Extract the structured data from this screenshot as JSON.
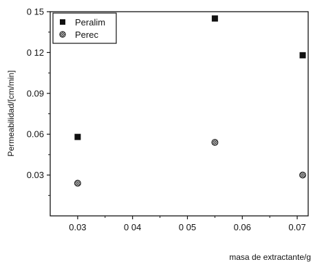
{
  "chart_data": {
    "type": "scatter",
    "title": "",
    "xlabel": "masa de extractante/g",
    "ylabel": "Permeabilidad/[cm/min]",
    "xlim": [
      0.025,
      0.072
    ],
    "ylim": [
      0.0,
      0.15
    ],
    "x_ticks": [
      0.03,
      0.04,
      0.05,
      0.06,
      0.07
    ],
    "x_tick_labels": [
      "0.03",
      "0 04",
      "0 05",
      "0.06",
      "0.07"
    ],
    "y_ticks": [
      0.03,
      0.06,
      0.09,
      0.12,
      0.15
    ],
    "y_tick_labels": [
      "0.03",
      "0.06",
      "0.09",
      "0 12",
      "0 15"
    ],
    "grid": false,
    "legend_position": "top-left",
    "series": [
      {
        "name": "Peralim",
        "marker": "square",
        "color": "#111111",
        "x": [
          0.03,
          0.055,
          0.071
        ],
        "y": [
          0.058,
          0.145,
          0.118
        ]
      },
      {
        "name": "Perec",
        "marker": "circle",
        "color": "#777777",
        "x": [
          0.03,
          0.055,
          0.071
        ],
        "y": [
          0.024,
          0.054,
          0.03
        ]
      }
    ]
  }
}
